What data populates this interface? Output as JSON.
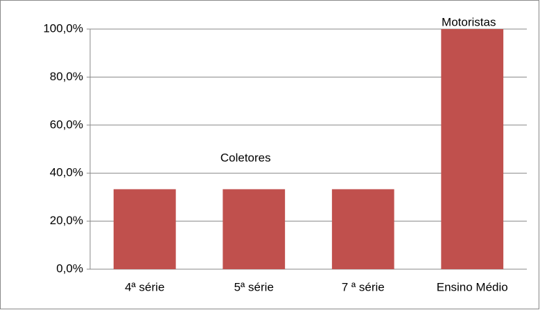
{
  "chart_data": {
    "type": "bar",
    "categories": [
      "4ª série",
      "5ª série",
      "7 ª série",
      "Ensino Médio"
    ],
    "values": [
      33.3,
      33.3,
      33.3,
      100
    ],
    "color": "#c0504d",
    "ylim": [
      0,
      100
    ],
    "yticks": [
      {
        "value": 0,
        "label": "0,0%"
      },
      {
        "value": 20,
        "label": "20,0%"
      },
      {
        "value": 40,
        "label": "40,0%"
      },
      {
        "value": 60,
        "label": "60,0%"
      },
      {
        "value": 80,
        "label": "80,0%"
      },
      {
        "value": 100,
        "label": "100,0%"
      }
    ],
    "grid": true,
    "annotations": [
      "Coletores",
      "Motoristas"
    ]
  }
}
